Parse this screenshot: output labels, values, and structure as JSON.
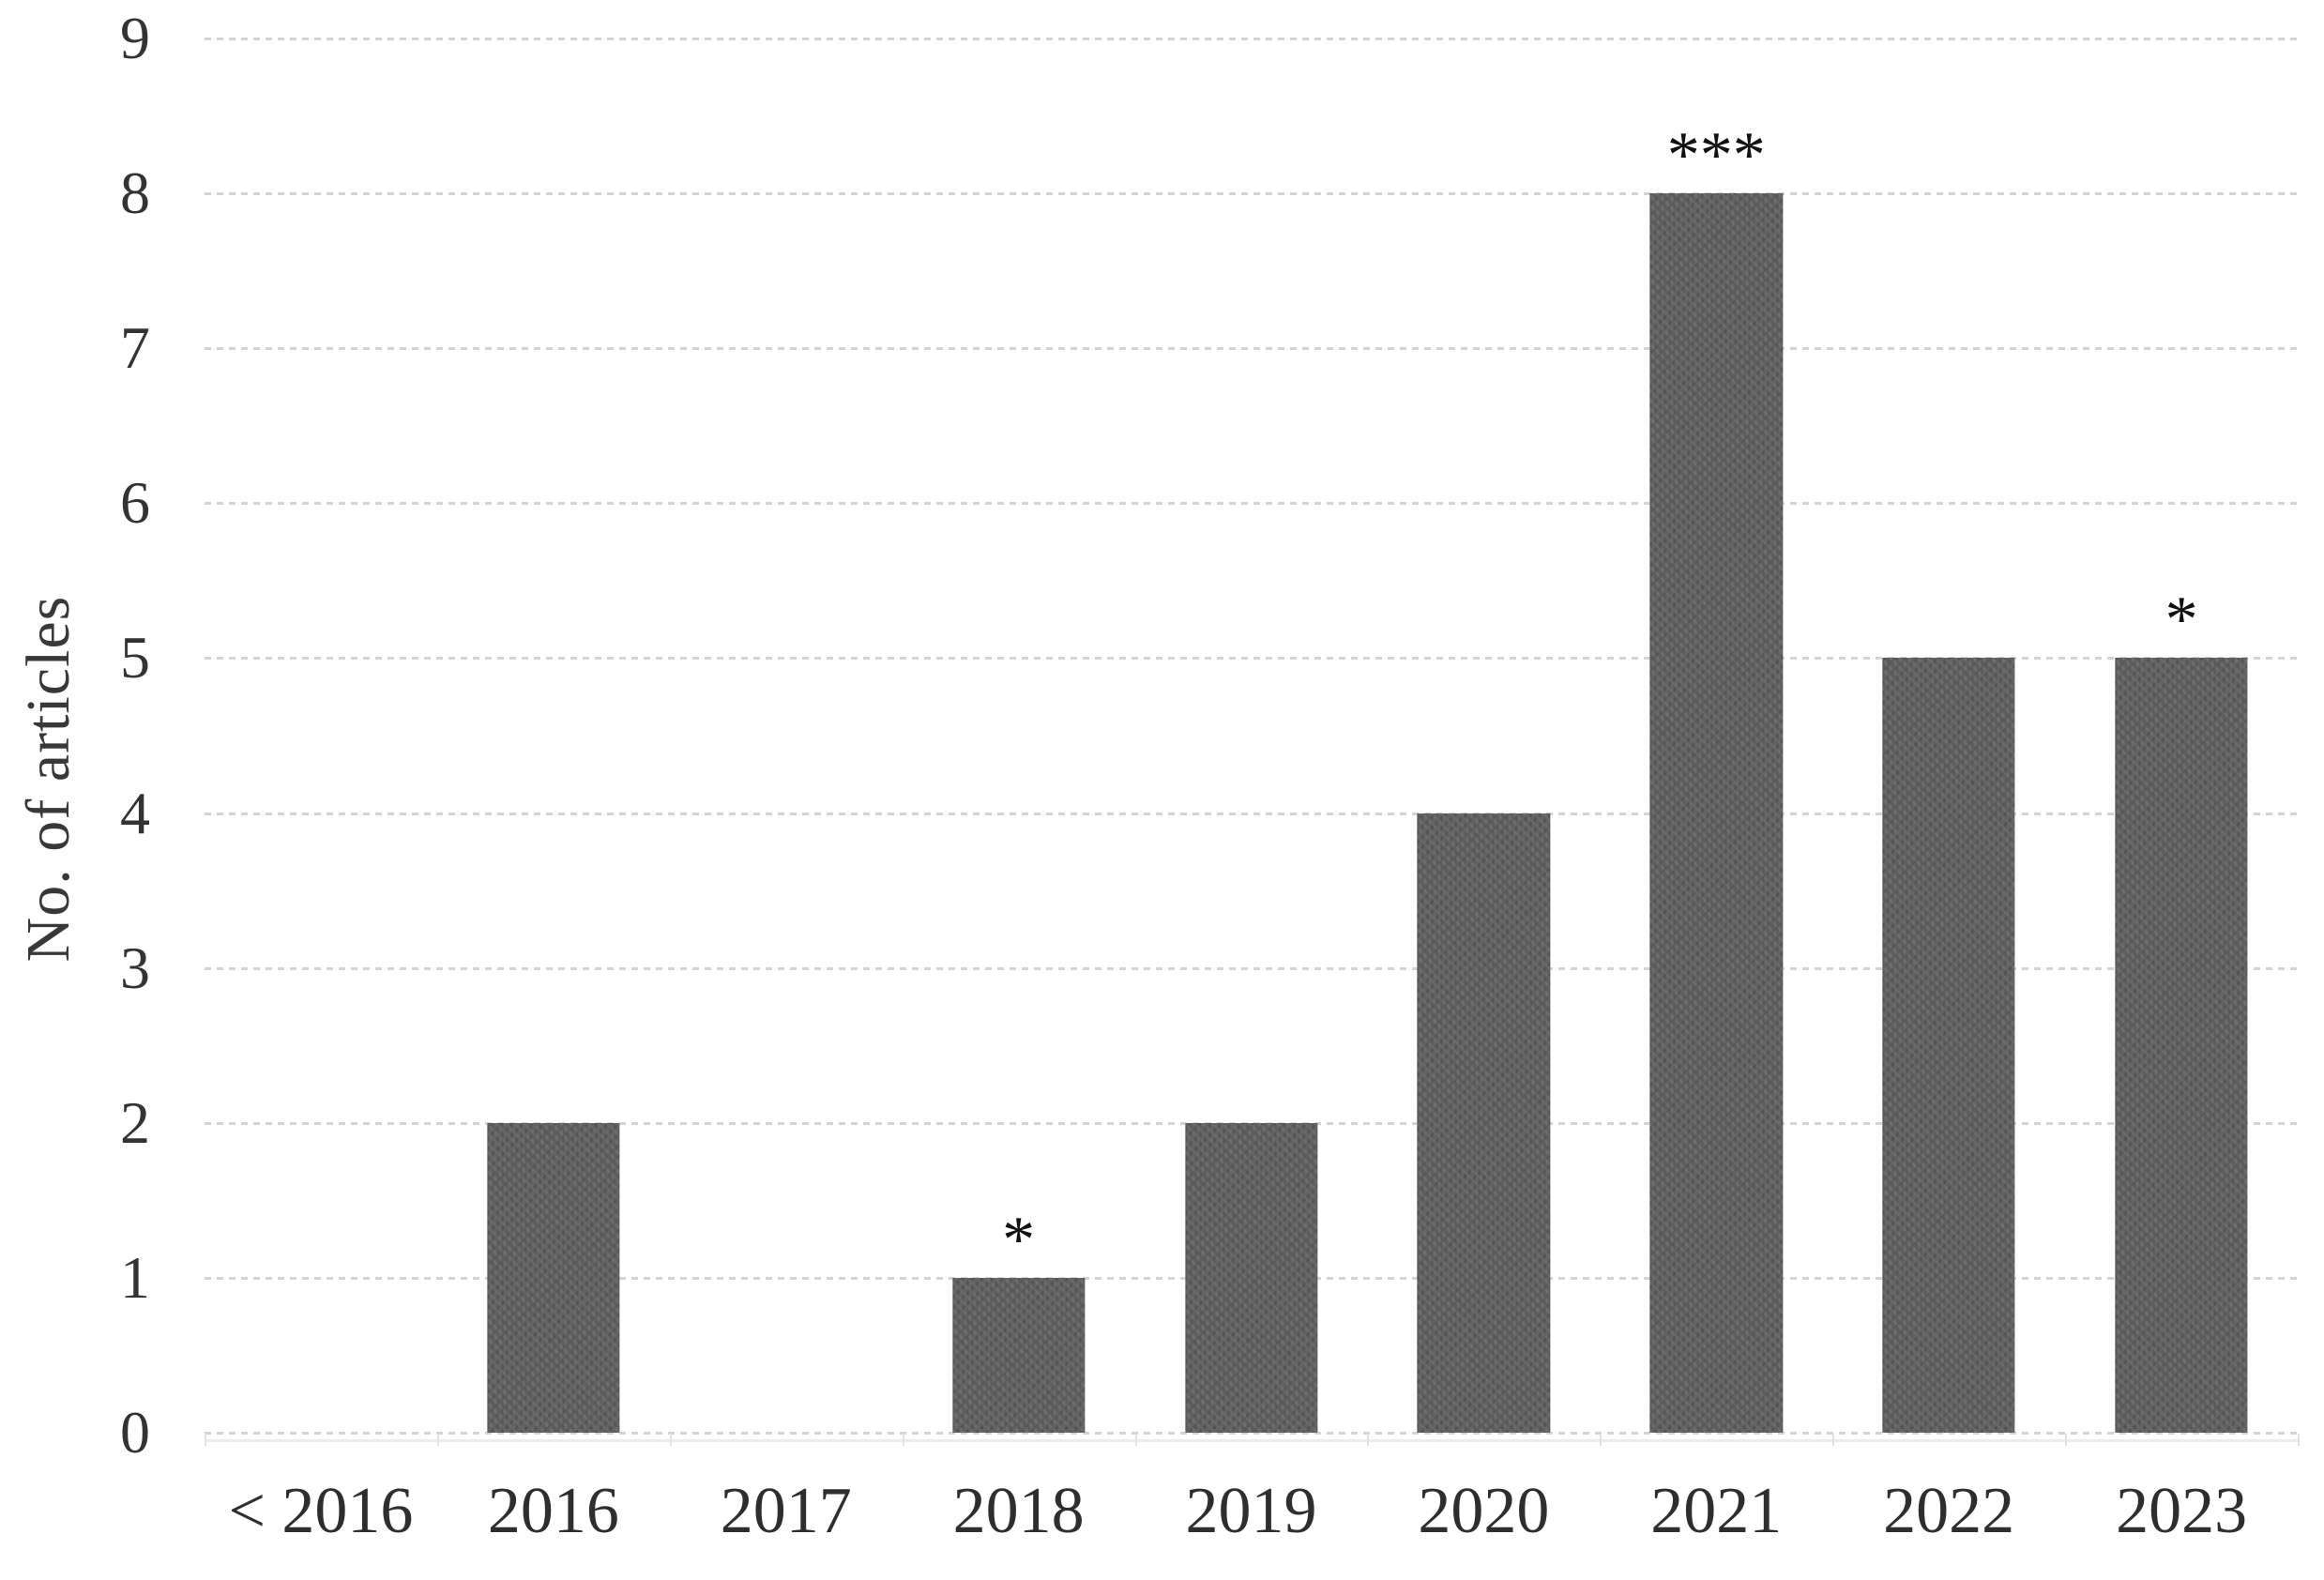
{
  "chart_data": {
    "type": "bar",
    "title": "",
    "xlabel": "",
    "ylabel": "No. of articles",
    "categories": [
      "< 2016",
      "2016",
      "2017",
      "2018",
      "2019",
      "2020",
      "2021",
      "2022",
      "2023"
    ],
    "values": [
      0,
      2,
      0,
      1,
      2,
      4,
      8,
      5,
      5
    ],
    "annotations": [
      "",
      "",
      "",
      "*",
      "",
      "",
      "***",
      "",
      "*"
    ],
    "ylim": [
      0,
      9
    ],
    "ytick_step": 1,
    "yticks": [
      0,
      1,
      2,
      3,
      4,
      5,
      6,
      7,
      8,
      9
    ],
    "grid": "horizontal-dashed",
    "legend": "none",
    "bar_color": "#5e5e5e",
    "gridline_color": "#d3d3d3",
    "text_color": "#2e2e2e",
    "background_color": "#ffffff"
  }
}
